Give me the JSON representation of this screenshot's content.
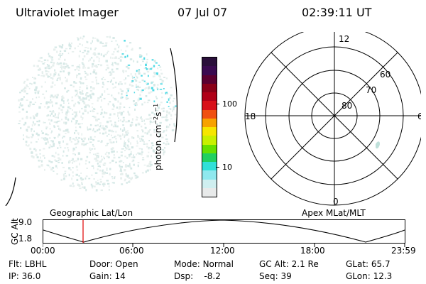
{
  "header": {
    "title": "Ultraviolet Imager",
    "date": "07 Jul 07",
    "time": "02:39:11 UT"
  },
  "colorbar": {
    "label": "photon cm^-2 s^-1",
    "ticks": [
      "100",
      "10"
    ],
    "colors": [
      "#2a0f3a",
      "#3a0a50",
      "#5a0030",
      "#8a0018",
      "#b00018",
      "#d8101a",
      "#f05010",
      "#f7a200",
      "#f6e600",
      "#c8f000",
      "#66e000",
      "#20d060",
      "#30e0d8",
      "#8fe8ee",
      "#cfeff0",
      "#e8eaea"
    ]
  },
  "polar_grid": {
    "mlt_labels": {
      "top": "12",
      "left": "18",
      "right": "6",
      "bottom": "0"
    },
    "lat_labels": [
      "60",
      "70",
      "80"
    ]
  },
  "timeline": {
    "axis_title": "GC Alt",
    "y_ticks": [
      "9.0",
      "1.8"
    ],
    "left_label": "Geographic Lat/Lon",
    "right_label": "Apex MLat/MLT",
    "x_ticks": [
      "00:00",
      "06:00",
      "12:00",
      "18:00",
      "23:59"
    ],
    "marker_time": "02:39"
  },
  "status": {
    "row1": [
      {
        "label": "Flt:",
        "value": "LBHL"
      },
      {
        "label": "Door:",
        "value": "Open"
      },
      {
        "label": "Mode:",
        "value": "Normal"
      },
      {
        "label": "GC Alt:",
        "value": "2.1 Re"
      },
      {
        "label": "GLat:",
        "value": "65.7"
      }
    ],
    "row2": [
      {
        "label": "IP:",
        "value": "36.0"
      },
      {
        "label": "Gain:",
        "value": "14"
      },
      {
        "label": "Dsp:",
        "value": "-8.2"
      },
      {
        "label": "Seq:",
        "value": "39"
      },
      {
        "label": "GLon:",
        "value": "12.3"
      }
    ]
  }
}
